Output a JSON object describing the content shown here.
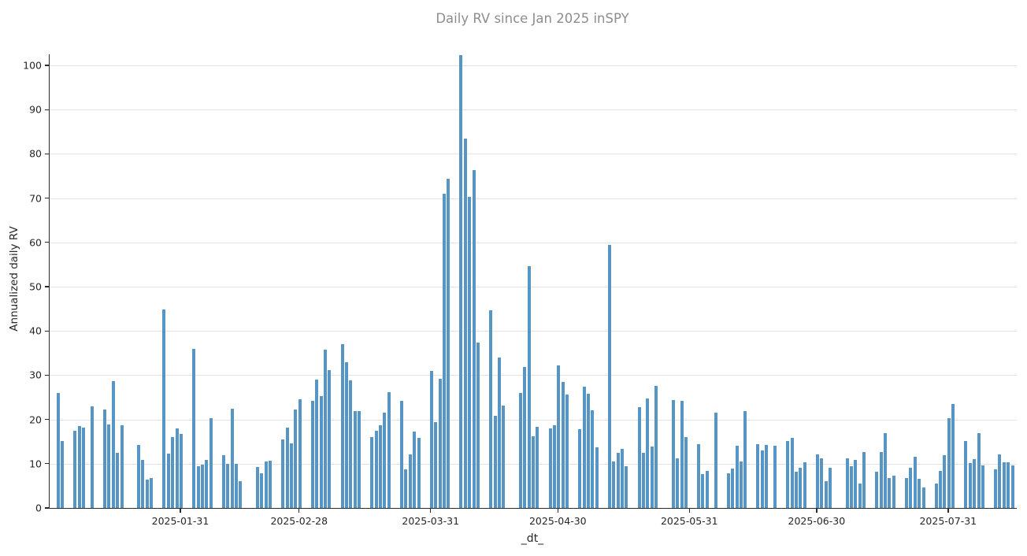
{
  "chart_data": {
    "type": "bar",
    "title": "Daily RV since Jan 2025 inSPY",
    "xlabel": "_dt_",
    "ylabel": "Annualized daily RV",
    "bar_color": "#5795c4",
    "grid_color": "#e3e3e3",
    "ylim": [
      0,
      102.5
    ],
    "yticks": [
      0,
      10,
      20,
      30,
      40,
      50,
      60,
      70,
      80,
      90,
      100
    ],
    "xticks": [
      "2025-01-31",
      "2025-02-28",
      "2025-03-31",
      "2025-04-30",
      "2025-05-31",
      "2025-06-30",
      "2025-07-31"
    ],
    "x_domain": [
      "2024-12-31",
      "2025-08-16"
    ],
    "grid": "horizontal",
    "legend": "none",
    "x": [
      "2025-01-02",
      "2025-01-03",
      "2025-01-06",
      "2025-01-07",
      "2025-01-08",
      "2025-01-10",
      "2025-01-13",
      "2025-01-14",
      "2025-01-15",
      "2025-01-16",
      "2025-01-17",
      "2025-01-21",
      "2025-01-22",
      "2025-01-23",
      "2025-01-24",
      "2025-01-27",
      "2025-01-28",
      "2025-01-29",
      "2025-01-30",
      "2025-01-31",
      "2025-02-03",
      "2025-02-04",
      "2025-02-05",
      "2025-02-06",
      "2025-02-07",
      "2025-02-10",
      "2025-02-11",
      "2025-02-12",
      "2025-02-13",
      "2025-02-14",
      "2025-02-18",
      "2025-02-19",
      "2025-02-20",
      "2025-02-21",
      "2025-02-24",
      "2025-02-25",
      "2025-02-26",
      "2025-02-27",
      "2025-02-28",
      "2025-03-03",
      "2025-03-04",
      "2025-03-05",
      "2025-03-06",
      "2025-03-07",
      "2025-03-10",
      "2025-03-11",
      "2025-03-12",
      "2025-03-13",
      "2025-03-14",
      "2025-03-17",
      "2025-03-18",
      "2025-03-19",
      "2025-03-20",
      "2025-03-21",
      "2025-03-24",
      "2025-03-25",
      "2025-03-26",
      "2025-03-27",
      "2025-03-28",
      "2025-03-31",
      "2025-04-01",
      "2025-04-02",
      "2025-04-03",
      "2025-04-04",
      "2025-04-07",
      "2025-04-08",
      "2025-04-09",
      "2025-04-10",
      "2025-04-11",
      "2025-04-14",
      "2025-04-15",
      "2025-04-16",
      "2025-04-17",
      "2025-04-21",
      "2025-04-22",
      "2025-04-23",
      "2025-04-24",
      "2025-04-25",
      "2025-04-28",
      "2025-04-29",
      "2025-04-30",
      "2025-05-01",
      "2025-05-02",
      "2025-05-05",
      "2025-05-06",
      "2025-05-07",
      "2025-05-08",
      "2025-05-09",
      "2025-05-12",
      "2025-05-13",
      "2025-05-14",
      "2025-05-15",
      "2025-05-16",
      "2025-05-19",
      "2025-05-20",
      "2025-05-21",
      "2025-05-22",
      "2025-05-23",
      "2025-05-27",
      "2025-05-28",
      "2025-05-29",
      "2025-05-30",
      "2025-06-02",
      "2025-06-03",
      "2025-06-04",
      "2025-06-06",
      "2025-06-09",
      "2025-06-10",
      "2025-06-11",
      "2025-06-12",
      "2025-06-13",
      "2025-06-16",
      "2025-06-17",
      "2025-06-18",
      "2025-06-20",
      "2025-06-23",
      "2025-06-24",
      "2025-06-25",
      "2025-06-26",
      "2025-06-27",
      "2025-06-30",
      "2025-07-01",
      "2025-07-02",
      "2025-07-03",
      "2025-07-07",
      "2025-07-08",
      "2025-07-09",
      "2025-07-10",
      "2025-07-11",
      "2025-07-14",
      "2025-07-15",
      "2025-07-16",
      "2025-07-17",
      "2025-07-18",
      "2025-07-21",
      "2025-07-22",
      "2025-07-23",
      "2025-07-24",
      "2025-07-25",
      "2025-07-28",
      "2025-07-29",
      "2025-07-30",
      "2025-07-31",
      "2025-08-01",
      "2025-08-04",
      "2025-08-05",
      "2025-08-06",
      "2025-08-07",
      "2025-08-08",
      "2025-08-11",
      "2025-08-12",
      "2025-08-13",
      "2025-08-14",
      "2025-08-15"
    ],
    "values": [
      26.0,
      15.1,
      17.4,
      18.5,
      18.1,
      22.9,
      22.2,
      18.9,
      28.6,
      12.5,
      18.7,
      14.2,
      10.8,
      6.4,
      6.7,
      44.9,
      12.3,
      16.0,
      18.0,
      16.8,
      36.0,
      9.4,
      9.8,
      10.8,
      20.3,
      11.9,
      9.9,
      22.4,
      9.9,
      6.0,
      9.2,
      7.8,
      10.5,
      10.6,
      15.4,
      18.2,
      14.6,
      22.2,
      24.6,
      24.2,
      29.0,
      25.2,
      35.7,
      31.1,
      37.0,
      32.9,
      28.9,
      21.9,
      21.9,
      16.0,
      17.5,
      18.7,
      21.5,
      26.1,
      24.2,
      8.7,
      12.1,
      17.2,
      15.9,
      31.0,
      19.4,
      29.2,
      71.0,
      74.3,
      102.4,
      83.5,
      70.2,
      76.3,
      37.4,
      44.6,
      20.9,
      33.9,
      23.2,
      25.9,
      31.9,
      54.7,
      16.2,
      18.3,
      18.0,
      18.6,
      32.2,
      28.5,
      25.6,
      17.8,
      27.4,
      25.8,
      22.0,
      13.7,
      59.4,
      10.5,
      12.5,
      13.3,
      9.4,
      22.7,
      12.5,
      24.7,
      13.9,
      27.5,
      24.4,
      11.2,
      24.2,
      16.1,
      14.5,
      7.7,
      8.4,
      21.5,
      7.8,
      8.9,
      14.0,
      10.5,
      21.8,
      14.4,
      13.0,
      14.3,
      14.1,
      15.1,
      15.9,
      8.1,
      9.1,
      10.3,
      12.1,
      11.3,
      6.1,
      9.0,
      11.3,
      9.5,
      10.9,
      5.6,
      12.6,
      8.2,
      12.7,
      16.9,
      6.8,
      7.3,
      6.8,
      9.1,
      11.5,
      6.6,
      4.7,
      5.6,
      8.4,
      11.9,
      20.3,
      23.5,
      15.1,
      10.1,
      11.1,
      16.9,
      9.6,
      8.8,
      12.1,
      10.3,
      10.3,
      9.6
    ]
  }
}
